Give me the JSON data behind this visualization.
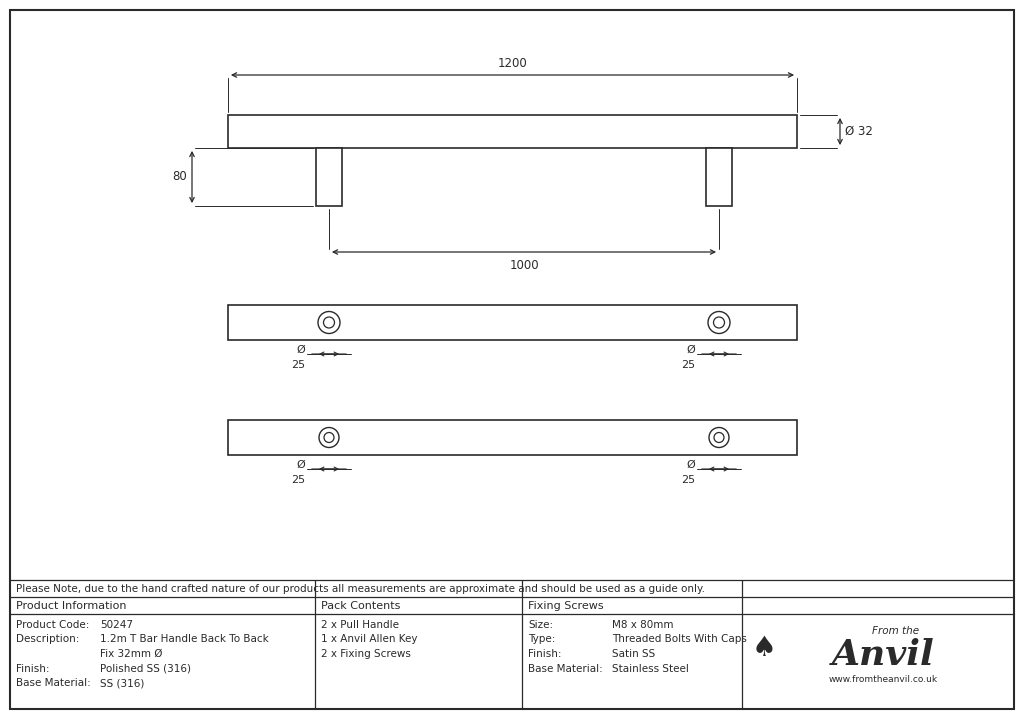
{
  "bg_color": "#ffffff",
  "line_color": "#2a2a2a",
  "dim_color": "#2a2a2a",
  "note_text": "Please Note, due to the hand crafted nature of our products all measurements are approximate and should be used as a guide only.",
  "product_info": {
    "title": "Product Information",
    "rows": [
      [
        "Product Code:",
        "50247"
      ],
      [
        "Description:",
        "1.2m T Bar Handle Back To Back"
      ],
      [
        "",
        "Fix 32mm Ø"
      ],
      [
        "Finish:",
        "Polished SS (316)"
      ],
      [
        "Base Material:",
        "SS (316)"
      ]
    ]
  },
  "pack_contents": {
    "title": "Pack Contents",
    "rows": [
      "2 x Pull Handle",
      "1 x Anvil Allen Key",
      "2 x Fixing Screws"
    ]
  },
  "fixing_screws": {
    "title": "Fixing Screws",
    "rows": [
      [
        "Size:",
        "M8 x 80mm"
      ],
      [
        "Type:",
        "Threaded Bolts With Caps"
      ],
      [
        "Finish:",
        "Satin SS"
      ],
      [
        "Base Material:",
        "Stainless Steel"
      ]
    ]
  },
  "dim_1200": "1200",
  "dim_1000": "1000",
  "dim_80": "80",
  "dim_32": "Ø 32",
  "dim_phi": "Ø",
  "dim_25": "25"
}
